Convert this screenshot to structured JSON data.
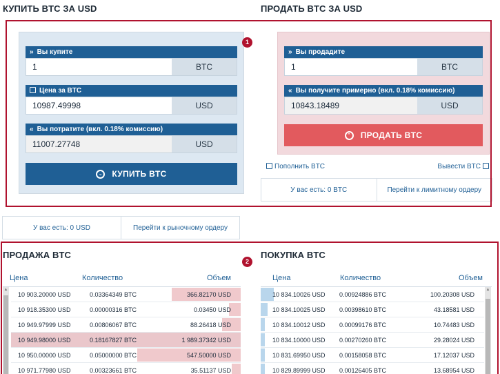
{
  "buy_section": {
    "title": "КУПИТЬ BTC ЗА USD",
    "you_buy": {
      "label": "Вы купите",
      "prefix": "»",
      "value": "1",
      "unit": "BTC"
    },
    "price": {
      "label": "Цена за BTC",
      "value": "10987.49998",
      "unit": "USD"
    },
    "you_spend": {
      "label": "Вы потратите (вкл. 0.18% комиссию)",
      "prefix": "«",
      "value": "11007.27748",
      "unit": "USD"
    },
    "button": "КУПИТЬ BTC",
    "balance": "У вас есть: 0 USD",
    "switch_link": "Перейти к рыночному ордеру"
  },
  "sell_section": {
    "title": "ПРОДАТЬ BTC ЗА USD",
    "you_sell": {
      "label": "Вы продадите",
      "prefix": "»",
      "value": "1",
      "unit": "BTC"
    },
    "you_get": {
      "label": "Вы получите примерно (вкл. 0.18% комиссию)",
      "prefix": "«",
      "value": "10843.18489",
      "unit": "USD"
    },
    "button": "ПРОДАТЬ BTC",
    "deposit_link": "Пополнить BTC",
    "withdraw_link": "Вывести BTC",
    "balance": "У вас есть: 0 BTC",
    "switch_link": "Перейти к лимитному ордеру"
  },
  "badges": {
    "one": "1",
    "two": "2"
  },
  "sell_book": {
    "title": "ПРОДАЖА BTC",
    "headers": {
      "price": "Цена",
      "qty": "Количество",
      "volume": "Объем"
    },
    "rows": [
      {
        "price": "10 903.20000 USD",
        "qty": "0.03364349 BTC",
        "volume": "366.82170 USD",
        "depth": 0.3,
        "highlight": false
      },
      {
        "price": "10 918.35300 USD",
        "qty": "0.00000316 BTC",
        "volume": "0.03450 USD",
        "depth": 0.05,
        "highlight": false
      },
      {
        "price": "10 949.97999 USD",
        "qty": "0.00806067 BTC",
        "volume": "88.26418 USD",
        "depth": 0.08,
        "highlight": false
      },
      {
        "price": "10 949.98000 USD",
        "qty": "0.18167827 BTC",
        "volume": "1 989.37342 USD",
        "depth": 1.0,
        "highlight": true
      },
      {
        "price": "10 950.00000 USD",
        "qty": "0.05000000 BTC",
        "volume": "547.50000 USD",
        "depth": 0.45,
        "highlight": false
      },
      {
        "price": "10 971.77980 USD",
        "qty": "0.00323661 BTC",
        "volume": "35.51137 USD",
        "depth": 0.04,
        "highlight": false
      }
    ]
  },
  "buy_book": {
    "title": "ПОКУПКА BTC",
    "headers": {
      "price": "Цена",
      "qty": "Количество",
      "volume": "Объем"
    },
    "rows": [
      {
        "price": "10 834.10026 USD",
        "qty": "0.00924886 BTC",
        "volume": "100.20308 USD",
        "depth": 0.06
      },
      {
        "price": "10 834.10025 USD",
        "qty": "0.00398610 BTC",
        "volume": "43.18581 USD",
        "depth": 0.03
      },
      {
        "price": "10 834.10012 USD",
        "qty": "0.00099176 BTC",
        "volume": "10.74483 USD",
        "depth": 0.01
      },
      {
        "price": "10 834.10000 USD",
        "qty": "0.00270260 BTC",
        "volume": "29.28024 USD",
        "depth": 0.02
      },
      {
        "price": "10 831.69950 USD",
        "qty": "0.00158058 BTC",
        "volume": "17.12037 USD",
        "depth": 0.01
      },
      {
        "price": "10 829.89999 USD",
        "qty": "0.00126405 BTC",
        "volume": "13.68954 USD",
        "depth": 0.01
      }
    ]
  },
  "colors": {
    "accent": "#1f5f95",
    "sell_button": "#e25a5e",
    "outline": "#b0122e",
    "sell_depth": "#f0c9cc",
    "buy_depth": "#b9d6ec",
    "highlight_row": "#eac7cb"
  }
}
